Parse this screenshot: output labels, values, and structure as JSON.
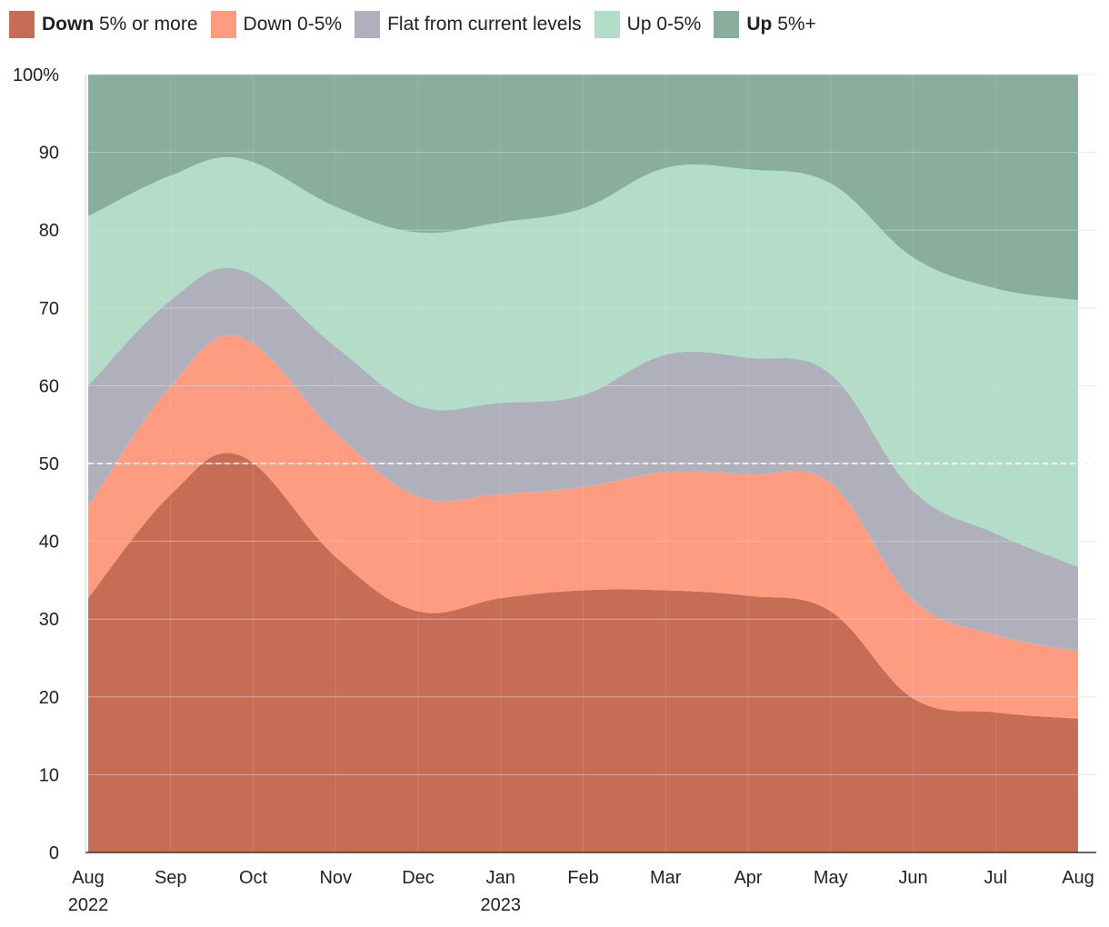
{
  "chart_data": {
    "type": "area",
    "stacked": true,
    "normalized": true,
    "ylim": [
      0,
      100
    ],
    "yticks": [
      0,
      10,
      20,
      30,
      40,
      50,
      60,
      70,
      80,
      90,
      100
    ],
    "ytick_labels": [
      "0",
      "10",
      "20",
      "30",
      "40",
      "50",
      "60",
      "70",
      "80",
      "90",
      "100%"
    ],
    "reference_line": {
      "value": 50,
      "style": "dashed"
    },
    "x_ticks": [
      {
        "label": "Aug",
        "year": "2022",
        "x": 0
      },
      {
        "label": "Sep",
        "year": "",
        "x": 1
      },
      {
        "label": "Oct",
        "year": "",
        "x": 2
      },
      {
        "label": "Nov",
        "year": "",
        "x": 3
      },
      {
        "label": "Dec",
        "year": "",
        "x": 4
      },
      {
        "label": "Jan",
        "year": "2023",
        "x": 5
      },
      {
        "label": "Feb",
        "year": "",
        "x": 6
      },
      {
        "label": "Mar",
        "year": "",
        "x": 7
      },
      {
        "label": "Apr",
        "year": "",
        "x": 8
      },
      {
        "label": "May",
        "year": "",
        "x": 9
      },
      {
        "label": "Jun",
        "year": "",
        "x": 10
      },
      {
        "label": "Jul",
        "year": "",
        "x": 11
      },
      {
        "label": "Aug",
        "year": "",
        "x": 12
      }
    ],
    "x_range": [
      0,
      12
    ],
    "x": [
      0,
      1.0,
      1.85,
      3.0,
      4.0,
      5.0,
      6.0,
      7.0,
      8.0,
      9.0,
      10.0,
      11.0,
      12.0
    ],
    "legend": [
      {
        "bold": "Down",
        "rest": " 5% or more",
        "color": "#c76d56"
      },
      {
        "bold": "",
        "rest": "Down 0-5%",
        "color": "#fd9c80"
      },
      {
        "bold": "",
        "rest": "Flat from current levels",
        "color": "#b0b0bd"
      },
      {
        "bold": "",
        "rest": "Up 0-5%",
        "color": "#b3dcc9"
      },
      {
        "bold": "Up",
        "rest": " 5%+",
        "color": "#89ae9b"
      }
    ],
    "series": [
      {
        "name": "Down 5% or more",
        "color": "#c76d56",
        "values": [
          32.7,
          46,
          51,
          38,
          31,
          32.7,
          33.7,
          33.7,
          33,
          31,
          19.8,
          18,
          17.2
        ]
      },
      {
        "name": "Down 0-5%",
        "color": "#fd9c80",
        "values": [
          11.8,
          14,
          15.3,
          16,
          14.8,
          13.4,
          13.3,
          15.2,
          15.6,
          16.5,
          12.7,
          10,
          8.7
        ]
      },
      {
        "name": "Flat from current levels",
        "color": "#b0b0bd",
        "values": [
          15.5,
          11,
          8.6,
          11,
          11.6,
          11.7,
          11.8,
          15.1,
          15,
          14,
          14,
          13,
          10.8
        ]
      },
      {
        "name": "Up 0-5%",
        "color": "#b3dcc9",
        "values": [
          21.8,
          16,
          14.3,
          18,
          22.3,
          23.2,
          24,
          24,
          24.2,
          24.5,
          30,
          31.5,
          34.3
        ]
      },
      {
        "name": "Up 5%+",
        "color": "#89ae9b",
        "values": [
          18.2,
          13,
          10.8,
          17,
          20.3,
          19,
          17.2,
          12,
          12.2,
          14,
          23.5,
          27.5,
          29
        ]
      }
    ]
  }
}
